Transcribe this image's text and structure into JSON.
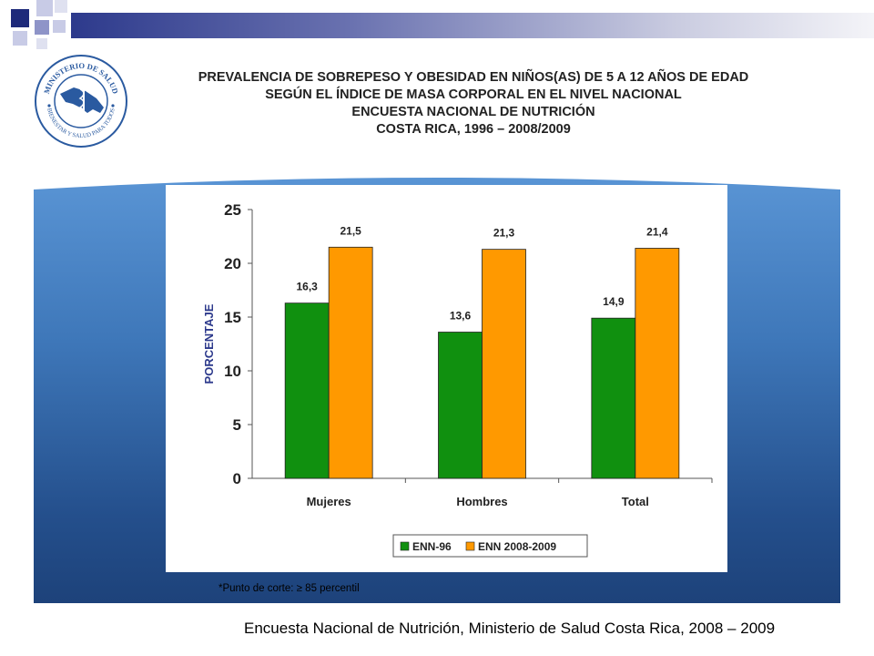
{
  "header": {
    "title_lines": [
      "PREVALENCIA DE SOBREPESO Y OBESIDAD EN NIÑOS(AS) DE 5 A 12 AÑOS DE EDAD",
      "SEGÚN EL ÍNDICE DE MASA CORPORAL EN EL NIVEL NACIONAL",
      "ENCUESTA NACIONAL DE NUTRICIÓN",
      "COSTA RICA,  1996 – 2008/2009"
    ]
  },
  "logo": {
    "top_text": "MINISTERIO DE SALUD",
    "bottom_text": "BIENESTAR Y SALUD PARA TODOS"
  },
  "colors": {
    "accent": "#2d3a8c",
    "series_1": "#10900f",
    "series_2": "#ff9900",
    "panel_blue": "#3e77b9"
  },
  "chart_data": {
    "type": "bar",
    "categories": [
      "Mujeres",
      "Hombres",
      "Total"
    ],
    "series": [
      {
        "name": "ENN-96",
        "values": [
          16.3,
          13.6,
          14.9
        ],
        "labels": [
          "16,3",
          "13,6",
          "14,9"
        ]
      },
      {
        "name": "ENN 2008-2009",
        "values": [
          21.5,
          21.3,
          21.4
        ],
        "labels": [
          "21,5",
          "21,3",
          "21,4"
        ]
      }
    ],
    "ylabel": "PORCENTAJE",
    "ylim": [
      0,
      25
    ],
    "yticks": [
      0,
      5,
      10,
      15,
      20,
      25
    ],
    "grid": false,
    "legend_position": "bottom"
  },
  "footnote": "*Punto de corte: ≥ 85 percentil",
  "source": "Encuesta Nacional de Nutrición, Ministerio de Salud Costa Rica, 2008 – 2009"
}
